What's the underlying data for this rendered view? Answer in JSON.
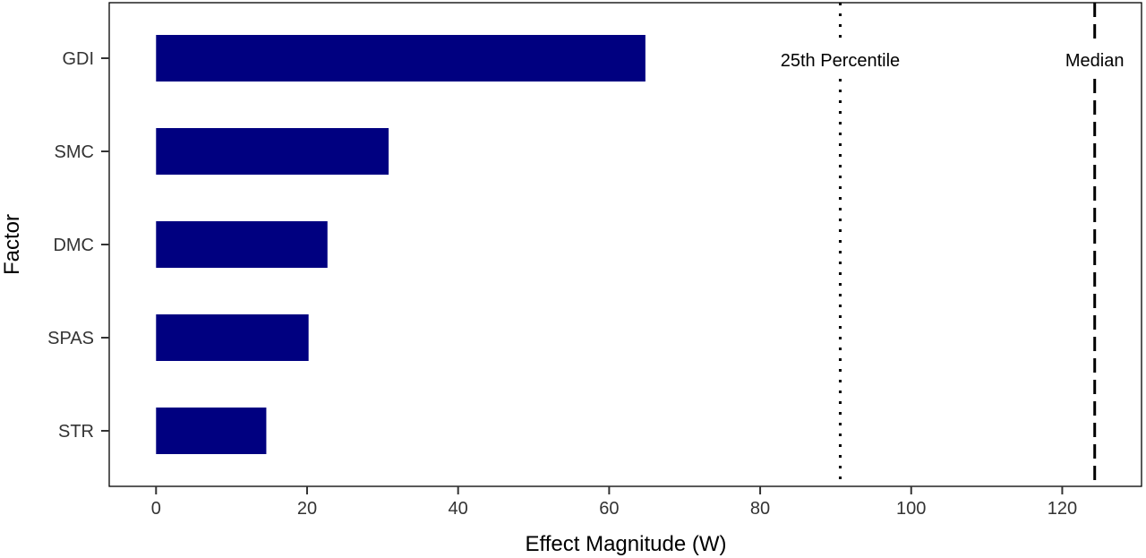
{
  "chart_data": {
    "type": "bar",
    "orientation": "horizontal",
    "categories": [
      "GDI",
      "SMC",
      "DMC",
      "SPAS",
      "STR"
    ],
    "values": [
      64.8,
      30.8,
      22.7,
      20.2,
      14.6
    ],
    "bar_color": "#000080",
    "xlabel": "Effect Magnitude (W)",
    "ylabel": "Factor",
    "xlim": [
      -6.2,
      130.5
    ],
    "xticks": [
      0,
      20,
      40,
      60,
      80,
      100,
      120
    ],
    "xtick_labels": [
      "0",
      "20",
      "40",
      "60",
      "80",
      "100",
      "120"
    ],
    "grid": false,
    "reference_lines": [
      {
        "name": "25th Percentile",
        "value": 90.6,
        "style": "dotted"
      },
      {
        "name": "Median",
        "value": 124.3,
        "style": "dashed"
      }
    ]
  }
}
